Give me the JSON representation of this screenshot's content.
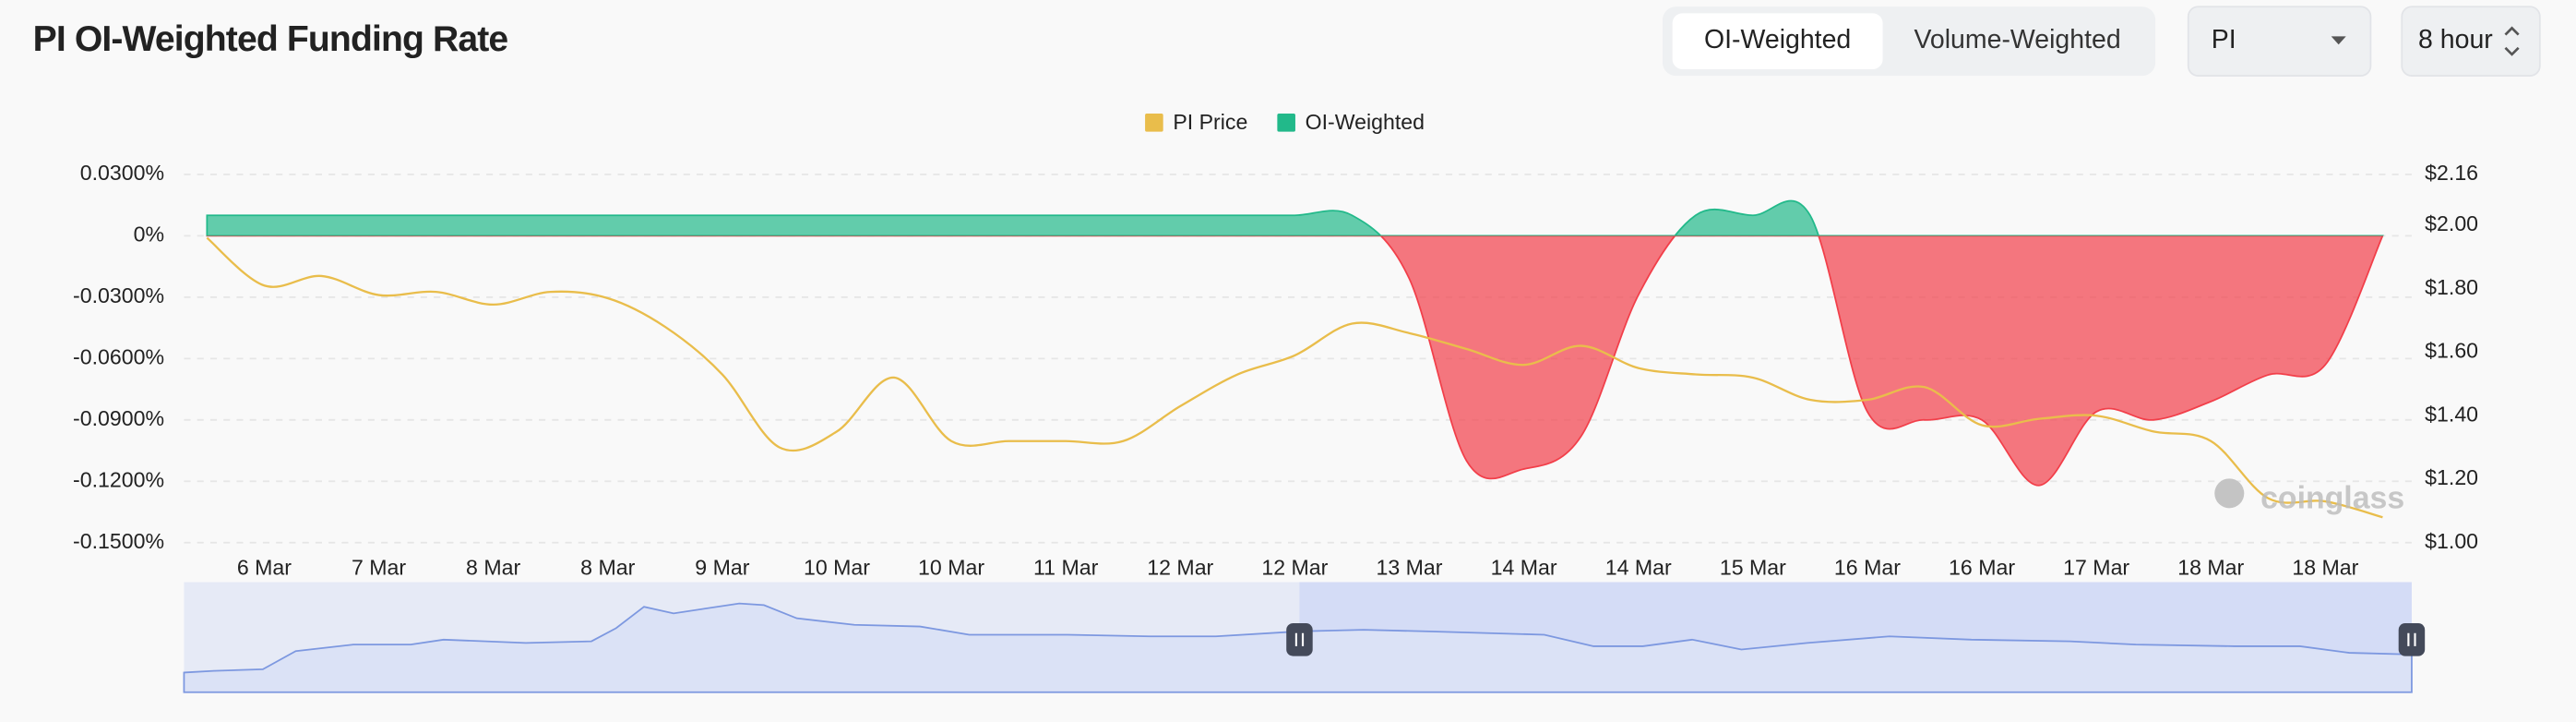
{
  "header": {
    "title": "PI OI-Weighted Funding Rate"
  },
  "controls": {
    "modes": [
      "OI-Weighted",
      "Volume-Weighted"
    ],
    "symbol": "PI",
    "interval": "8 hour"
  },
  "watermark": "coinglass",
  "chart_data": {
    "type": "area",
    "categories": [
      null,
      "6 Mar",
      null,
      "7 Mar",
      null,
      "8 Mar",
      null,
      "8 Mar",
      null,
      "9 Mar",
      null,
      "10 Mar",
      null,
      "10 Mar",
      null,
      "11 Mar",
      null,
      "12 Mar",
      null,
      "12 Mar",
      null,
      "13 Mar",
      null,
      "14 Mar",
      null,
      "14 Mar",
      null,
      "15 Mar",
      null,
      "16 Mar",
      null,
      "16 Mar",
      null,
      "17 Mar",
      null,
      "18 Mar",
      null,
      "18 Mar",
      null
    ],
    "series": [
      {
        "name": "PI Price",
        "type": "line",
        "axis": "y2",
        "color": "#e9bd4b",
        "values": [
          1.96,
          1.81,
          1.84,
          1.78,
          1.79,
          1.75,
          1.79,
          1.77,
          1.68,
          1.53,
          1.3,
          1.35,
          1.52,
          1.32,
          1.32,
          1.32,
          1.32,
          1.43,
          1.53,
          1.59,
          1.69,
          1.66,
          1.61,
          1.56,
          1.62,
          1.55,
          1.53,
          1.52,
          1.45,
          1.45,
          1.49,
          1.37,
          1.39,
          1.4,
          1.35,
          1.32,
          1.14,
          1.13,
          1.08
        ]
      },
      {
        "name": "OI-Weighted",
        "type": "area",
        "color": "#22b98a",
        "negative_color": "#f23f4a",
        "values": [
          0.01,
          0.01,
          0.01,
          0.01,
          0.01,
          0.01,
          0.01,
          0.01,
          0.01,
          0.01,
          0.01,
          0.01,
          0.01,
          0.01,
          0.01,
          0.01,
          0.01,
          0.01,
          0.01,
          0.01,
          0.01,
          -0.021,
          -0.11,
          -0.114,
          -0.098,
          -0.029,
          0.01,
          0.01,
          0.01,
          -0.086,
          -0.09,
          -0.09,
          -0.122,
          -0.086,
          -0.09,
          -0.081,
          -0.068,
          -0.063,
          0
        ]
      }
    ],
    "ylim": [
      -0.15,
      0.03
    ],
    "yticks": [
      {
        "value": 0.03,
        "label": "0.0300%"
      },
      {
        "value": 0,
        "label": "0%"
      },
      {
        "value": -0.03,
        "label": "-0.0300%"
      },
      {
        "value": -0.06,
        "label": "-0.0600%"
      },
      {
        "value": -0.09,
        "label": "-0.0900%"
      },
      {
        "value": -0.12,
        "label": "-0.1200%"
      },
      {
        "value": -0.15,
        "label": "-0.1500%"
      }
    ],
    "y2lim": [
      1.0,
      2.16
    ],
    "y2ticks": [
      {
        "value": 2.16,
        "label": "$2.16"
      },
      {
        "value": 2.0,
        "label": "$2.00"
      },
      {
        "value": 1.8,
        "label": "$1.80"
      },
      {
        "value": 1.6,
        "label": "$1.60"
      },
      {
        "value": 1.4,
        "label": "$1.40"
      },
      {
        "value": 1.2,
        "label": "$1.20"
      },
      {
        "value": 1.0,
        "label": "$1.00"
      }
    ],
    "grid": true,
    "legend": "top"
  }
}
